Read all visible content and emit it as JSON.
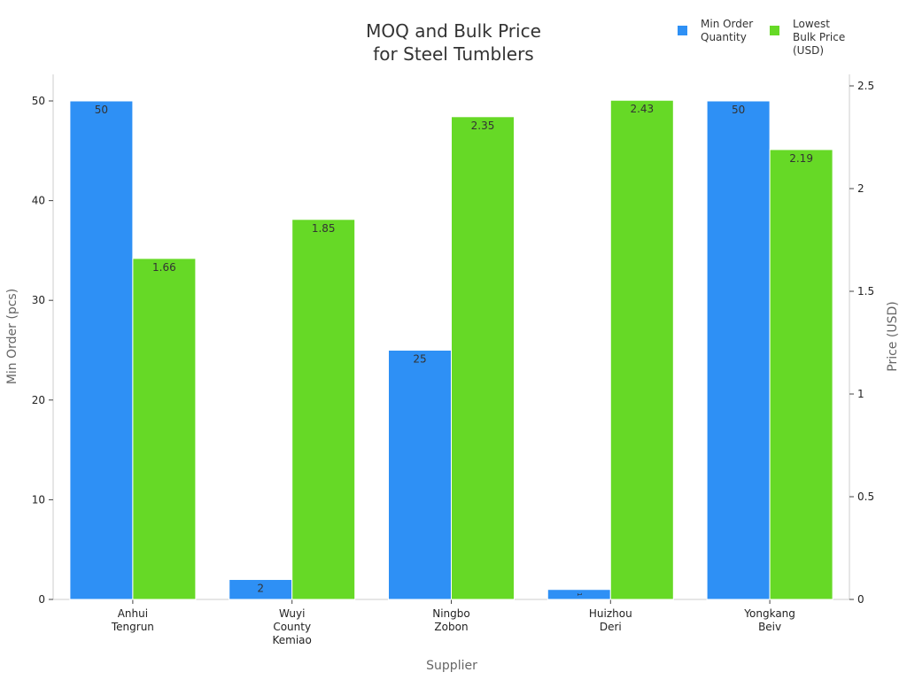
{
  "chart_data": {
    "type": "bar",
    "title": [
      "MOQ and Bulk Price",
      "for Steel Tumblers"
    ],
    "xlabel": "Supplier",
    "ylabel": "Min Order (pcs)",
    "y2label": "Price (USD)",
    "categories": [
      [
        "Anhui",
        "Tengrun"
      ],
      [
        "Wuyi",
        "County",
        "Kemiao"
      ],
      [
        "Ningbo",
        "Zobon"
      ],
      [
        "Huizhou",
        "Deri"
      ],
      [
        "Yongkang",
        "Beiv"
      ]
    ],
    "ylim": [
      0,
      52.5
    ],
    "y2lim": [
      0,
      2.56
    ],
    "yticks": [
      0,
      10,
      20,
      30,
      40,
      50
    ],
    "y2ticks": [
      0,
      0.5,
      1,
      1.5,
      2,
      2.5
    ],
    "y2tick_labels": [
      "0",
      "0.5",
      "1",
      "1.5",
      "2",
      "2.5"
    ],
    "grid": false,
    "legend_position": "top-right",
    "series": [
      {
        "name": [
          "Min Order",
          "Quantity"
        ],
        "axis": "left",
        "color": "#2e90f5",
        "values": [
          50,
          2,
          25,
          1,
          50
        ],
        "labels": [
          "50",
          "2",
          "25",
          "1",
          "50"
        ]
      },
      {
        "name": [
          "Lowest",
          "Bulk Price",
          "(USD)"
        ],
        "axis": "right",
        "color": "#66d926",
        "values": [
          1.66,
          1.85,
          2.35,
          2.43,
          2.19
        ],
        "labels": [
          "1.66",
          "1.85",
          "2.35",
          "2.43",
          "2.19"
        ]
      }
    ]
  }
}
